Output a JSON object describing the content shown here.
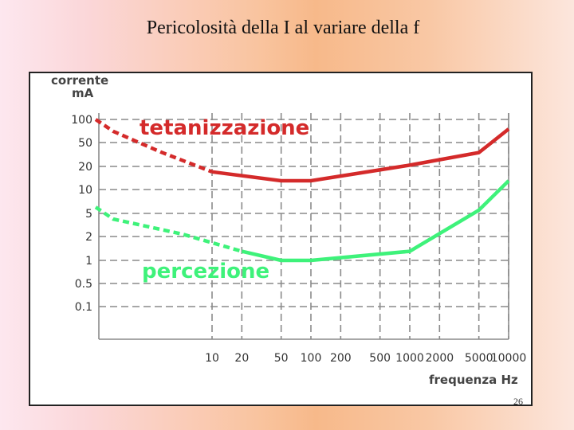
{
  "slide": {
    "title": "Pericolosità della I al variare della f",
    "page_number": "26"
  },
  "chart_data": {
    "type": "line",
    "title": "",
    "ylabel": "corrente",
    "yunit": "mA",
    "xlabel": "frequenza Hz",
    "x_ticks": [
      "10",
      "20",
      "50",
      "100",
      "200",
      "500",
      "1000",
      "2000",
      "5000",
      "10000"
    ],
    "y_ticks": [
      "100",
      "50",
      "20",
      "10",
      "5",
      "2",
      "1",
      "0.5",
      "0.1"
    ],
    "grid": true,
    "colors": {
      "tetanizzazione": "#d42a2a",
      "percezione": "#3ef27a",
      "grid": "#8a8a8a"
    },
    "series": [
      {
        "name": "tetanizzazione",
        "dashed_below": 10,
        "points": [
          [
            0.5,
            100
          ],
          [
            1,
            70
          ],
          [
            3,
            35
          ],
          [
            10,
            17
          ],
          [
            50,
            13
          ],
          [
            100,
            13
          ],
          [
            1000,
            21
          ],
          [
            5000,
            34
          ],
          [
            10000,
            75
          ]
        ]
      },
      {
        "name": "percezione",
        "dashed_below": 20,
        "points": [
          [
            0.5,
            6
          ],
          [
            1,
            4
          ],
          [
            5,
            2.2
          ],
          [
            20,
            1.3
          ],
          [
            50,
            1
          ],
          [
            100,
            1
          ],
          [
            1000,
            1.3
          ],
          [
            5000,
            5.5
          ],
          [
            10000,
            13
          ]
        ]
      }
    ]
  }
}
